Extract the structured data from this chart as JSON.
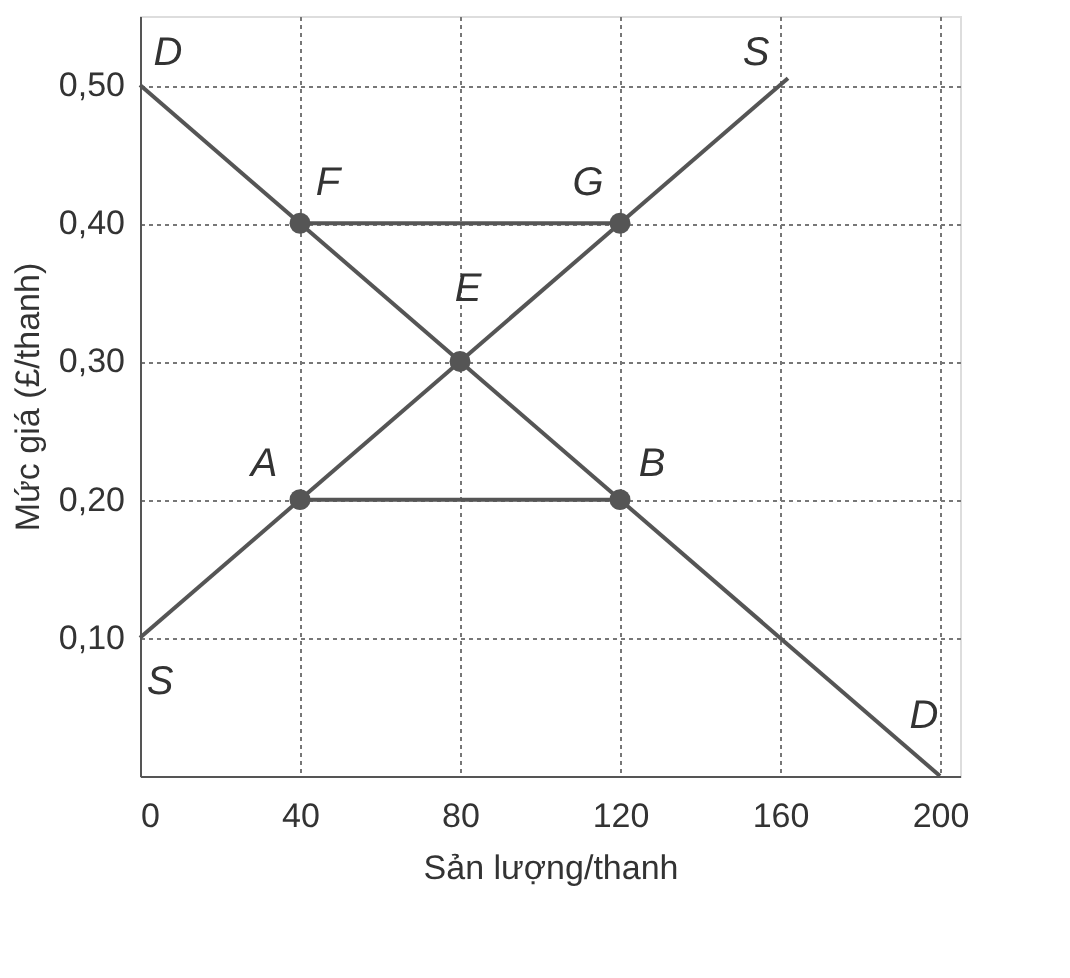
{
  "chart_data": {
    "type": "line",
    "xlabel": "Sản lượng/thanh",
    "ylabel": "Mức giá (£/thanh)",
    "xlim": [
      0,
      205
    ],
    "ylim": [
      0,
      0.55
    ],
    "xticks": [
      0,
      40,
      80,
      120,
      160,
      200
    ],
    "yticks": [
      {
        "value": 0.1,
        "label": "0,10"
      },
      {
        "value": 0.2,
        "label": "0,20"
      },
      {
        "value": 0.3,
        "label": "0,30"
      },
      {
        "value": 0.4,
        "label": "0,40"
      },
      {
        "value": 0.5,
        "label": "0,50"
      }
    ],
    "grid": true,
    "line_style": "solid",
    "marker": "none",
    "series": [
      {
        "color": "#555555",
        "x": [
          0,
          200
        ],
        "values": [
          0.5,
          0
        ]
      },
      {
        "color": "#555555",
        "x": [
          0,
          162
        ],
        "values": [
          0.1,
          0.505
        ]
      },
      {
        "color": "#555555",
        "x": [
          40,
          120
        ],
        "values": [
          0.4,
          0.4
        ]
      },
      {
        "color": "#555555",
        "x": [
          40,
          120
        ],
        "values": [
          0.2,
          0.2
        ]
      },
      {
        "type": "scatter",
        "marker": "circle",
        "color": "#555555",
        "x": [
          40,
          120,
          80,
          40,
          120
        ],
        "values": [
          0.4,
          0.4,
          0.3,
          0.2,
          0.2
        ]
      }
    ],
    "annotations": [
      {
        "text": "D",
        "x": 0,
        "y": 0.5
      },
      {
        "text": "S",
        "x": 160,
        "y": 0.5
      },
      {
        "text": "F",
        "x": 40,
        "y": 0.4
      },
      {
        "text": "G",
        "x": 120,
        "y": 0.4
      },
      {
        "text": "E",
        "x": 80,
        "y": 0.3
      },
      {
        "text": "A",
        "x": 40,
        "y": 0.2
      },
      {
        "text": "B",
        "x": 120,
        "y": 0.2
      },
      {
        "text": "S",
        "x": 0,
        "y": 0.1
      },
      {
        "text": "D",
        "x": 200,
        "y": 0
      }
    ]
  }
}
